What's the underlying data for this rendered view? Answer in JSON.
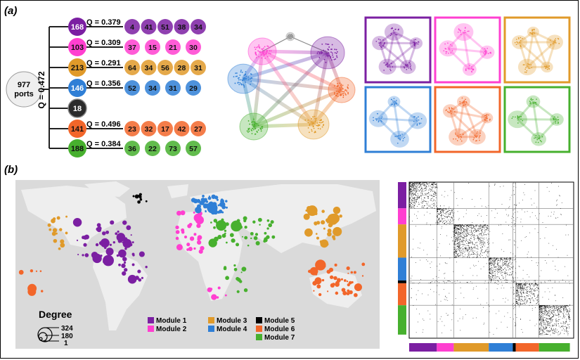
{
  "panel_labels": {
    "a": "(a)",
    "b": "(b)"
  },
  "root": {
    "count": "977",
    "unit": "ports",
    "q": "Q = 0.472"
  },
  "modules": [
    {
      "count": "168",
      "color": "#7b1fa2",
      "q": "Q = 0.379",
      "subs": [
        "4",
        "41",
        "51",
        "38",
        "34"
      ]
    },
    {
      "count": "103",
      "color": "#ff3fd0",
      "q": "Q = 0.309",
      "subs": [
        "37",
        "15",
        "21",
        "30"
      ]
    },
    {
      "count": "213",
      "color": "#e09a2a",
      "q": "Q = 0.291",
      "subs": [
        "64",
        "34",
        "56",
        "28",
        "31"
      ]
    },
    {
      "count": "146",
      "color": "#2f7fd6",
      "q": "Q = 0.356",
      "subs": [
        "52",
        "34",
        "31",
        "29"
      ]
    },
    {
      "count": "18",
      "color": "#2b2b2b",
      "q": "",
      "subs": []
    },
    {
      "count": "141",
      "color": "#f2662a",
      "q": "Q = 0.496",
      "subs": [
        "23",
        "32",
        "17",
        "42",
        "27"
      ]
    },
    {
      "count": "188",
      "color": "#47b02e",
      "q": "Q = 0.384",
      "subs": [
        "36",
        "22",
        "73",
        "57"
      ]
    }
  ],
  "legend": {
    "degree_title": "Degree",
    "degree_values": [
      "324",
      "180",
      "1"
    ],
    "modules": [
      {
        "label": "Module 1",
        "color": "#7b1fa2"
      },
      {
        "label": "Module 2",
        "color": "#ff3fd0"
      },
      {
        "label": "Module 3",
        "color": "#e09a2a"
      },
      {
        "label": "Module 4",
        "color": "#2f7fd6"
      },
      {
        "label": "Module 5",
        "color": "#000000"
      },
      {
        "label": "Module 6",
        "color": "#f2662a"
      },
      {
        "label": "Module 7",
        "color": "#47b02e"
      }
    ]
  },
  "matrix_fractions": [
    0.168,
    0.103,
    0.213,
    0.146,
    0.018,
    0.141,
    0.188
  ]
}
